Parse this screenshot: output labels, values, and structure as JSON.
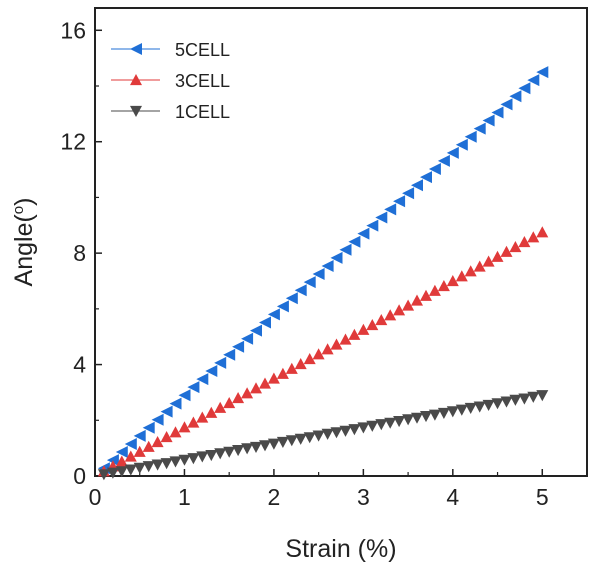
{
  "chart_data": {
    "type": "scatter",
    "title": "",
    "xlabel": "Strain (%)",
    "ylabel": "Angle(",
    "ylabel_sup": "o",
    "ylabel_end": ")",
    "xlim": [
      0,
      5.5
    ],
    "ylim": [
      0,
      16.8
    ],
    "xticks": [
      "0",
      "1",
      "2",
      "3",
      "4",
      "5"
    ],
    "yticks": [
      "0",
      "4",
      "8",
      "12",
      "16"
    ],
    "grid": false,
    "legend_position": "top-left",
    "series": [
      {
        "name": "5CELL",
        "color": "#1f6fd6",
        "marker": "triangle-left",
        "x": [
          0.1,
          0.2,
          0.3,
          0.4,
          0.5,
          0.6,
          0.7,
          0.8,
          0.9,
          1.0,
          1.1,
          1.2,
          1.3,
          1.4,
          1.5,
          1.6,
          1.7,
          1.8,
          1.9,
          2.0,
          2.1,
          2.2,
          2.3,
          2.4,
          2.5,
          2.6,
          2.7,
          2.8,
          2.9,
          3.0,
          3.1,
          3.2,
          3.3,
          3.4,
          3.5,
          3.6,
          3.7,
          3.8,
          3.9,
          4.0,
          4.1,
          4.2,
          4.3,
          4.4,
          4.5,
          4.6,
          4.7,
          4.8,
          4.9,
          5.0
        ],
        "y": [
          0.28,
          0.57,
          0.86,
          1.15,
          1.44,
          1.73,
          2.02,
          2.31,
          2.6,
          2.9,
          3.19,
          3.48,
          3.77,
          4.06,
          4.35,
          4.64,
          4.93,
          5.22,
          5.51,
          5.8,
          6.09,
          6.38,
          6.67,
          6.96,
          7.25,
          7.54,
          7.83,
          8.12,
          8.41,
          8.7,
          8.99,
          9.28,
          9.57,
          9.86,
          10.15,
          10.44,
          10.73,
          11.02,
          11.31,
          11.6,
          11.89,
          12.18,
          12.47,
          12.76,
          13.05,
          13.34,
          13.63,
          13.92,
          14.21,
          14.5
        ]
      },
      {
        "name": "3CELL",
        "color": "#e03a3a",
        "marker": "triangle-up",
        "x": [
          0.1,
          0.2,
          0.3,
          0.4,
          0.5,
          0.6,
          0.7,
          0.8,
          0.9,
          1.0,
          1.1,
          1.2,
          1.3,
          1.4,
          1.5,
          1.6,
          1.7,
          1.8,
          1.9,
          2.0,
          2.1,
          2.2,
          2.3,
          2.4,
          2.5,
          2.6,
          2.7,
          2.8,
          2.9,
          3.0,
          3.1,
          3.2,
          3.3,
          3.4,
          3.5,
          3.6,
          3.7,
          3.8,
          3.9,
          4.0,
          4.1,
          4.2,
          4.3,
          4.4,
          4.5,
          4.6,
          4.7,
          4.8,
          4.9,
          5.0
        ],
        "y": [
          0.17,
          0.35,
          0.52,
          0.7,
          0.87,
          1.05,
          1.22,
          1.4,
          1.57,
          1.75,
          1.92,
          2.1,
          2.27,
          2.45,
          2.62,
          2.8,
          2.97,
          3.15,
          3.32,
          3.5,
          3.67,
          3.85,
          4.02,
          4.2,
          4.37,
          4.55,
          4.72,
          4.9,
          5.07,
          5.25,
          5.42,
          5.6,
          5.77,
          5.95,
          6.12,
          6.3,
          6.47,
          6.65,
          6.82,
          7.0,
          7.17,
          7.35,
          7.52,
          7.7,
          7.87,
          8.05,
          8.22,
          8.4,
          8.57,
          8.75
        ]
      },
      {
        "name": "1CELL",
        "color": "#4a4a4a",
        "marker": "triangle-down",
        "x": [
          0.1,
          0.2,
          0.3,
          0.4,
          0.5,
          0.6,
          0.7,
          0.8,
          0.9,
          1.0,
          1.1,
          1.2,
          1.3,
          1.4,
          1.5,
          1.6,
          1.7,
          1.8,
          1.9,
          2.0,
          2.1,
          2.2,
          2.3,
          2.4,
          2.5,
          2.6,
          2.7,
          2.8,
          2.9,
          3.0,
          3.1,
          3.2,
          3.3,
          3.4,
          3.5,
          3.6,
          3.7,
          3.8,
          3.9,
          4.0,
          4.1,
          4.2,
          4.3,
          4.4,
          4.5,
          4.6,
          4.7,
          4.8,
          4.9,
          5.0
        ],
        "y": [
          0.06,
          0.12,
          0.17,
          0.23,
          0.29,
          0.35,
          0.41,
          0.46,
          0.52,
          0.58,
          0.64,
          0.7,
          0.75,
          0.81,
          0.87,
          0.93,
          0.99,
          1.04,
          1.1,
          1.16,
          1.22,
          1.28,
          1.33,
          1.39,
          1.45,
          1.51,
          1.57,
          1.62,
          1.68,
          1.74,
          1.8,
          1.86,
          1.91,
          1.97,
          2.03,
          2.09,
          2.15,
          2.2,
          2.26,
          2.32,
          2.38,
          2.44,
          2.49,
          2.55,
          2.61,
          2.67,
          2.73,
          2.78,
          2.84,
          2.9
        ]
      }
    ]
  }
}
